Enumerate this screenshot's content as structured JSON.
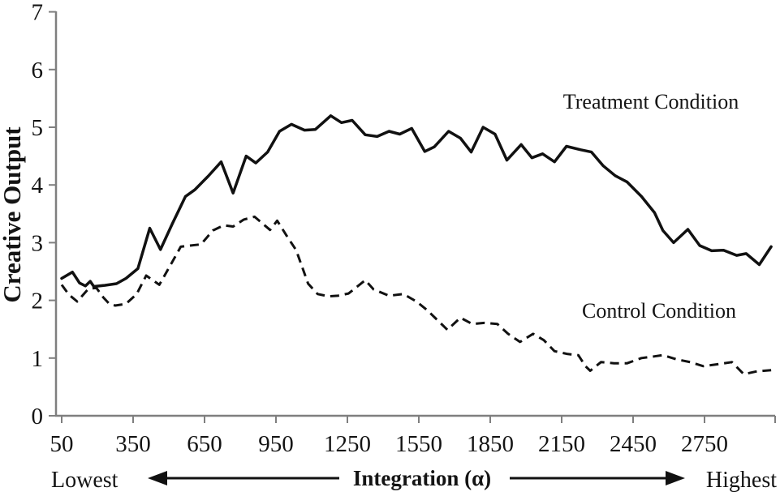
{
  "chart_data": {
    "type": "line",
    "title": "",
    "ylabel": "Creative Output",
    "xlabel": "Integration (α)",
    "ylim": [
      0,
      7
    ],
    "xlim": [
      50,
      3050
    ],
    "grid": false,
    "legend_position": "inline-text-annotations",
    "y_ticks": [
      0,
      1,
      2,
      3,
      4,
      5,
      6,
      7
    ],
    "x_ticks": [
      50,
      350,
      650,
      950,
      1250,
      1550,
      1850,
      2150,
      2450,
      2750
    ],
    "axis_color": "#7f7f7f",
    "line_color": "#111111",
    "annotations": {
      "left": "Lowest",
      "right": "Highest"
    },
    "series": [
      {
        "name": "Treatment Condition",
        "style": "solid",
        "points": [
          [
            50,
            2.38
          ],
          [
            95,
            2.49
          ],
          [
            125,
            2.3
          ],
          [
            150,
            2.25
          ],
          [
            170,
            2.33
          ],
          [
            185,
            2.24
          ],
          [
            230,
            2.26
          ],
          [
            280,
            2.29
          ],
          [
            320,
            2.38
          ],
          [
            370,
            2.55
          ],
          [
            420,
            3.25
          ],
          [
            465,
            2.88
          ],
          [
            515,
            3.33
          ],
          [
            570,
            3.8
          ],
          [
            610,
            3.92
          ],
          [
            665,
            4.15
          ],
          [
            720,
            4.4
          ],
          [
            770,
            3.86
          ],
          [
            825,
            4.5
          ],
          [
            865,
            4.38
          ],
          [
            915,
            4.57
          ],
          [
            965,
            4.93
          ],
          [
            1015,
            5.05
          ],
          [
            1070,
            4.95
          ],
          [
            1115,
            4.96
          ],
          [
            1180,
            5.2
          ],
          [
            1225,
            5.08
          ],
          [
            1270,
            5.12
          ],
          [
            1325,
            4.87
          ],
          [
            1375,
            4.84
          ],
          [
            1425,
            4.93
          ],
          [
            1470,
            4.88
          ],
          [
            1520,
            4.98
          ],
          [
            1575,
            4.58
          ],
          [
            1615,
            4.66
          ],
          [
            1675,
            4.93
          ],
          [
            1725,
            4.81
          ],
          [
            1770,
            4.57
          ],
          [
            1820,
            5.0
          ],
          [
            1870,
            4.88
          ],
          [
            1920,
            4.43
          ],
          [
            1980,
            4.7
          ],
          [
            2025,
            4.47
          ],
          [
            2070,
            4.54
          ],
          [
            2120,
            4.4
          ],
          [
            2170,
            4.67
          ],
          [
            2230,
            4.61
          ],
          [
            2275,
            4.57
          ],
          [
            2325,
            4.33
          ],
          [
            2375,
            4.16
          ],
          [
            2425,
            4.05
          ],
          [
            2485,
            3.8
          ],
          [
            2540,
            3.52
          ],
          [
            2575,
            3.21
          ],
          [
            2620,
            3.0
          ],
          [
            2680,
            3.23
          ],
          [
            2730,
            2.95
          ],
          [
            2780,
            2.86
          ],
          [
            2830,
            2.87
          ],
          [
            2885,
            2.78
          ],
          [
            2925,
            2.81
          ],
          [
            2980,
            2.62
          ],
          [
            3030,
            2.93
          ]
        ]
      },
      {
        "name": "Control Condition",
        "style": "dashed",
        "points": [
          [
            50,
            2.27
          ],
          [
            80,
            2.1
          ],
          [
            115,
            1.98
          ],
          [
            160,
            2.19
          ],
          [
            195,
            2.22
          ],
          [
            225,
            2.05
          ],
          [
            250,
            1.94
          ],
          [
            275,
            1.91
          ],
          [
            320,
            1.94
          ],
          [
            365,
            2.11
          ],
          [
            405,
            2.43
          ],
          [
            460,
            2.27
          ],
          [
            515,
            2.67
          ],
          [
            550,
            2.93
          ],
          [
            590,
            2.95
          ],
          [
            635,
            2.97
          ],
          [
            685,
            3.21
          ],
          [
            730,
            3.3
          ],
          [
            770,
            3.28
          ],
          [
            815,
            3.4
          ],
          [
            860,
            3.45
          ],
          [
            925,
            3.22
          ],
          [
            955,
            3.38
          ],
          [
            995,
            3.12
          ],
          [
            1035,
            2.87
          ],
          [
            1085,
            2.29
          ],
          [
            1125,
            2.11
          ],
          [
            1170,
            2.07
          ],
          [
            1210,
            2.08
          ],
          [
            1255,
            2.12
          ],
          [
            1325,
            2.35
          ],
          [
            1360,
            2.19
          ],
          [
            1425,
            2.08
          ],
          [
            1485,
            2.11
          ],
          [
            1540,
            1.98
          ],
          [
            1585,
            1.83
          ],
          [
            1670,
            1.49
          ],
          [
            1725,
            1.7
          ],
          [
            1775,
            1.59
          ],
          [
            1825,
            1.61
          ],
          [
            1880,
            1.59
          ],
          [
            1925,
            1.42
          ],
          [
            1975,
            1.28
          ],
          [
            2030,
            1.42
          ],
          [
            2075,
            1.31
          ],
          [
            2120,
            1.12
          ],
          [
            2175,
            1.07
          ],
          [
            2220,
            1.05
          ],
          [
            2250,
            0.86
          ],
          [
            2270,
            0.78
          ],
          [
            2315,
            0.93
          ],
          [
            2370,
            0.91
          ],
          [
            2425,
            0.91
          ],
          [
            2485,
            1.0
          ],
          [
            2540,
            1.03
          ],
          [
            2575,
            1.05
          ],
          [
            2630,
            0.98
          ],
          [
            2690,
            0.93
          ],
          [
            2745,
            0.86
          ],
          [
            2800,
            0.89
          ],
          [
            2865,
            0.93
          ],
          [
            2915,
            0.72
          ],
          [
            2970,
            0.77
          ],
          [
            3030,
            0.79
          ]
        ]
      }
    ]
  }
}
